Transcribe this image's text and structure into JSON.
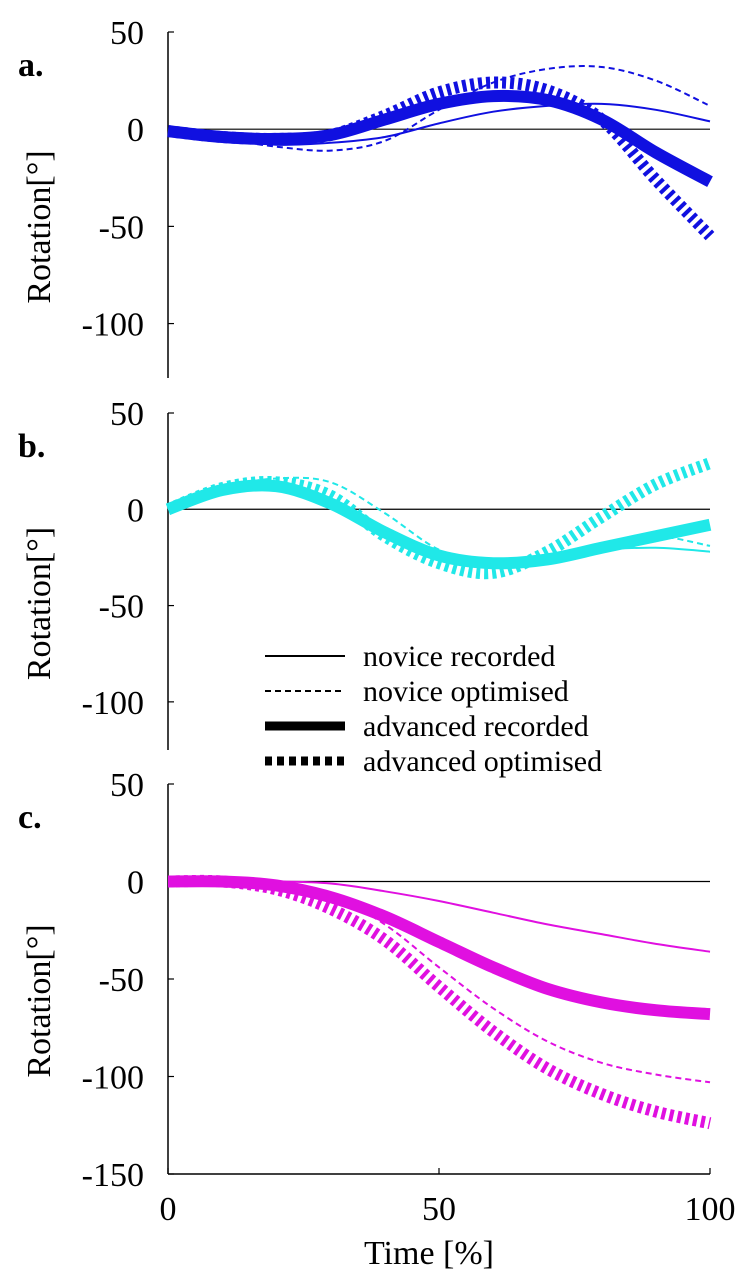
{
  "chart_data": [
    {
      "panel_label": "a.",
      "type": "line",
      "ylabel": "Rotation[°]",
      "xlabel": "",
      "xlim": [
        0,
        100
      ],
      "ylim": [
        -128,
        50
      ],
      "yticks": [
        50,
        0,
        -50,
        -100
      ],
      "ytick_labels": [
        "50",
        "0",
        "-50",
        "-100"
      ],
      "color": "#1010e0",
      "zero_line": true,
      "series": [
        {
          "name": "novice recorded",
          "style": "novice-recorded",
          "x": [
            0,
            10,
            20,
            30,
            40,
            50,
            60,
            70,
            80,
            90,
            100
          ],
          "values": [
            -1,
            -5,
            -8,
            -7,
            -4,
            3,
            9,
            12,
            13,
            10,
            4
          ]
        },
        {
          "name": "novice optimised",
          "style": "novice-optimised",
          "x": [
            0,
            10,
            20,
            30,
            40,
            50,
            60,
            70,
            80,
            90,
            100
          ],
          "values": [
            -1,
            -5,
            -9,
            -11,
            -6,
            10,
            24,
            31,
            32,
            25,
            12
          ]
        },
        {
          "name": "advanced recorded",
          "style": "advanced-recorded",
          "x": [
            0,
            10,
            20,
            30,
            40,
            50,
            60,
            70,
            80,
            90,
            100
          ],
          "values": [
            -1,
            -4,
            -5,
            -3,
            5,
            13,
            17,
            15,
            5,
            -12,
            -27
          ]
        },
        {
          "name": "advanced optimised",
          "style": "advanced-optimised",
          "x": [
            0,
            10,
            20,
            30,
            40,
            50,
            60,
            70,
            80,
            90,
            100
          ],
          "values": [
            -1,
            -4,
            -5,
            -3,
            7,
            19,
            24,
            20,
            5,
            -26,
            -55
          ]
        }
      ]
    },
    {
      "panel_label": "b.",
      "type": "line",
      "ylabel": "Rotation[°]",
      "xlabel": "",
      "xlim": [
        0,
        100
      ],
      "ylim": [
        -125,
        50
      ],
      "yticks": [
        50,
        0,
        -50,
        -100
      ],
      "ytick_labels": [
        "50",
        "0",
        "-50",
        "-100"
      ],
      "color": "#20e8e8",
      "zero_line": true,
      "series": [
        {
          "name": "novice recorded",
          "style": "novice-recorded",
          "x": [
            0,
            10,
            20,
            30,
            40,
            50,
            60,
            70,
            80,
            90,
            100
          ],
          "values": [
            0,
            9,
            12,
            5,
            -10,
            -23,
            -27,
            -24,
            -21,
            -20,
            -22
          ]
        },
        {
          "name": "novice optimised",
          "style": "novice-optimised",
          "x": [
            0,
            10,
            20,
            30,
            40,
            50,
            60,
            70,
            80,
            90,
            100
          ],
          "values": [
            0,
            11,
            16,
            14,
            -2,
            -21,
            -29,
            -24,
            -18,
            -14,
            -19
          ]
        },
        {
          "name": "advanced recorded",
          "style": "advanced-recorded",
          "x": [
            0,
            10,
            20,
            30,
            40,
            50,
            60,
            70,
            80,
            90,
            100
          ],
          "values": [
            0,
            10,
            12,
            3,
            -12,
            -24,
            -28,
            -26,
            -20,
            -14,
            -8
          ]
        },
        {
          "name": "advanced optimised",
          "style": "advanced-optimised",
          "x": [
            0,
            10,
            20,
            30,
            40,
            50,
            60,
            70,
            80,
            90,
            100
          ],
          "values": [
            0,
            11,
            14,
            7,
            -14,
            -28,
            -33,
            -22,
            -4,
            13,
            24
          ]
        }
      ]
    },
    {
      "panel_label": "c.",
      "type": "line",
      "ylabel": "Rotation[°]",
      "xlabel": "Time [%]",
      "xlim": [
        0,
        100
      ],
      "ylim": [
        -150,
        50
      ],
      "yticks": [
        50,
        0,
        -50,
        -100,
        -150
      ],
      "ytick_labels": [
        "50",
        "0",
        "-50",
        "-100",
        "-150"
      ],
      "xticks": [
        0,
        50,
        100
      ],
      "xtick_labels": [
        "0",
        "50",
        "100"
      ],
      "color": "#e010e0",
      "zero_line": true,
      "series": [
        {
          "name": "novice recorded",
          "style": "novice-recorded",
          "x": [
            0,
            10,
            20,
            30,
            40,
            50,
            60,
            70,
            80,
            90,
            100
          ],
          "values": [
            0,
            0,
            0,
            -1,
            -5,
            -10,
            -16,
            -22,
            -27,
            -32,
            -36
          ]
        },
        {
          "name": "novice optimised",
          "style": "novice-optimised",
          "x": [
            0,
            10,
            20,
            30,
            40,
            50,
            60,
            70,
            80,
            90,
            100
          ],
          "values": [
            0,
            0,
            -1,
            -7,
            -22,
            -44,
            -65,
            -82,
            -93,
            -99,
            -103
          ]
        },
        {
          "name": "advanced recorded",
          "style": "advanced-recorded",
          "x": [
            0,
            10,
            20,
            30,
            40,
            50,
            60,
            70,
            80,
            90,
            100
          ],
          "values": [
            0,
            0,
            -2,
            -8,
            -18,
            -31,
            -44,
            -55,
            -62,
            -66,
            -68
          ]
        },
        {
          "name": "advanced optimised",
          "style": "advanced-optimised",
          "x": [
            0,
            10,
            20,
            30,
            40,
            50,
            60,
            70,
            80,
            90,
            100
          ],
          "values": [
            0,
            0,
            -4,
            -14,
            -30,
            -54,
            -77,
            -96,
            -109,
            -118,
            -124
          ]
        }
      ]
    }
  ],
  "legend": {
    "placement": "between panels b and c, center-right",
    "entries": [
      {
        "label": "novice recorded",
        "style": "novice-recorded"
      },
      {
        "label": "novice optimised",
        "style": "novice-optimised"
      },
      {
        "label": "advanced recorded",
        "style": "advanced-recorded"
      },
      {
        "label": "advanced optimised",
        "style": "advanced-optimised"
      }
    ]
  }
}
